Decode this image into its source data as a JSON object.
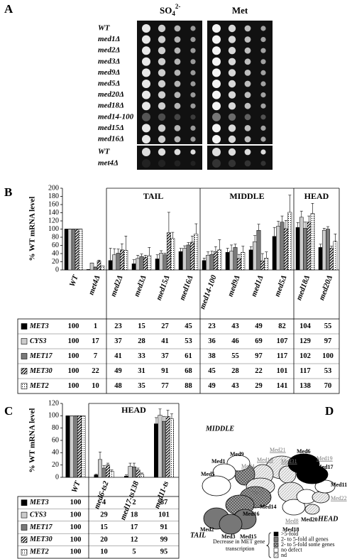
{
  "panel_labels": [
    "A",
    "B",
    "C",
    "D"
  ],
  "panel_a": {
    "headers": [
      {
        "base": "SO",
        "sub": "4",
        "sup": "2-"
      },
      "Met"
    ],
    "strains": [
      "WT",
      "med1Δ",
      "med2Δ",
      "med3Δ",
      "med9Δ",
      "med5Δ",
      "med20Δ",
      "med18Δ",
      "med14-100",
      "med15Δ",
      "med16Δ"
    ],
    "strains2": [
      "WT",
      "met4Δ"
    ]
  },
  "chart_data": [
    {
      "type": "bar",
      "ylabel": "% WT mRNA level",
      "categories": [
        "WT",
        "met4Δ",
        "med2Δ",
        "med3Δ",
        "med15Δ",
        "med16Δ",
        "med14-100",
        "med9Δ",
        "med1Δ",
        "med5Δ",
        "med18Δ",
        "med20Δ"
      ],
      "groups": [
        {
          "label": "TAIL",
          "size": 4
        },
        {
          "label": "MIDDLE",
          "size": 4
        },
        {
          "label": "HEAD",
          "size": 2
        }
      ],
      "ylim": [
        0,
        200
      ],
      "yticks": [
        0,
        20,
        40,
        60,
        80,
        100,
        120,
        140,
        160,
        180,
        200
      ],
      "series": [
        {
          "name": "MET3",
          "color": "#000000",
          "values": [
            100,
            1,
            23,
            15,
            27,
            45,
            23,
            43,
            49,
            82,
            104,
            55
          ],
          "errors": [
            0,
            0,
            30,
            10,
            10,
            8,
            6,
            10,
            8,
            22,
            12,
            8
          ]
        },
        {
          "name": "CYS3",
          "color": "#cccccc",
          "values": [
            100,
            17,
            37,
            28,
            41,
            53,
            36,
            46,
            69,
            107,
            129,
            97
          ],
          "errors": [
            0,
            0,
            15,
            8,
            6,
            6,
            8,
            15,
            15,
            12,
            15,
            5
          ]
        },
        {
          "name": "MET17",
          "color": "#7a7a7a",
          "values": [
            100,
            7,
            41,
            33,
            37,
            61,
            38,
            55,
            97,
            117,
            102,
            100
          ],
          "errors": [
            0,
            0,
            10,
            6,
            4,
            6,
            8,
            8,
            15,
            15,
            15,
            6
          ]
        },
        {
          "name": "MET30",
          "color": "#000000",
          "pattern": "diagonal",
          "values": [
            100,
            22,
            49,
            31,
            91,
            68,
            45,
            28,
            22,
            101,
            117,
            53
          ],
          "errors": [
            0,
            2,
            15,
            5,
            50,
            15,
            12,
            10,
            18,
            20,
            15,
            5
          ]
        },
        {
          "name": "MET2",
          "color": "#000000",
          "pattern": "dots",
          "values": [
            100,
            10,
            48,
            35,
            77,
            88,
            49,
            43,
            29,
            141,
            138,
            70
          ],
          "errors": [
            0,
            0,
            35,
            20,
            15,
            25,
            25,
            15,
            15,
            42,
            25,
            18
          ]
        }
      ]
    },
    {
      "type": "bar",
      "ylabel": "% WT mRNA level",
      "categories": [
        "WT",
        "med6-ts2",
        "med17-ts138",
        "med11-ts"
      ],
      "groups": [
        {
          "label": "HEAD",
          "size": 3
        }
      ],
      "ylim": [
        0,
        120
      ],
      "yticks": [
        0,
        20,
        40,
        60,
        80,
        100,
        120
      ],
      "series": [
        {
          "name": "MET3",
          "color": "#000000",
          "values": [
            100,
            4,
            2,
            87
          ],
          "errors": [
            0,
            1,
            2,
            10
          ]
        },
        {
          "name": "CYS3",
          "color": "#cccccc",
          "values": [
            100,
            29,
            18,
            101
          ],
          "errors": [
            0,
            12,
            5,
            10
          ]
        },
        {
          "name": "MET17",
          "color": "#7a7a7a",
          "values": [
            100,
            15,
            17,
            91
          ],
          "errors": [
            0,
            4,
            6,
            8
          ]
        },
        {
          "name": "MET30",
          "color": "#000000",
          "pattern": "diagonal",
          "values": [
            100,
            20,
            12,
            99
          ],
          "errors": [
            0,
            3,
            3,
            10
          ]
        },
        {
          "name": "MET2",
          "color": "#000000",
          "pattern": "dots",
          "values": [
            100,
            10,
            5,
            95
          ],
          "errors": [
            0,
            2,
            2,
            8
          ]
        }
      ]
    }
  ],
  "panel_d": {
    "regions": [
      "MIDDLE",
      "TAIL",
      "HEAD"
    ],
    "subunits": [
      "Med6",
      "Med17",
      "Med11",
      "Med22",
      "Med20",
      "Med19",
      "Med8",
      "Med18",
      "Med21",
      "Med31",
      "Med10",
      "Med4",
      "Med9",
      "Med1",
      "Med5",
      "Med7",
      "Med14",
      "Med16",
      "Med2",
      "Med3",
      "Med15"
    ],
    "legend_title": [
      "Decrease in MET gene",
      "transcription"
    ],
    "legend": [
      ">5-fold",
      "2- to 5-fold all genes",
      "2- to 5-fold some genes",
      "no defect",
      "nd"
    ]
  }
}
